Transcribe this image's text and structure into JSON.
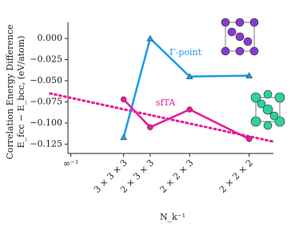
{
  "chart_data": {
    "type": "line",
    "y_label": [
      "Correlation Energy Difference",
      "E_fcc − E_bcc, (eV/atom)"
    ],
    "x_label": "N_k⁻¹",
    "xlim": [
      -0.002,
      0.142
    ],
    "ylim": [
      -0.136,
      0.019
    ],
    "xticks": [
      {
        "value": 0,
        "label": "∞⁻¹"
      },
      {
        "value": 0.037,
        "label": "3 × 3 × 3"
      },
      {
        "value": 0.0556,
        "label": "2 × 3 × 3"
      },
      {
        "value": 0.0833,
        "label": "2 × 2 × 3"
      },
      {
        "value": 0.125,
        "label": "2 × 2 × 2"
      }
    ],
    "yticks": [
      {
        "value": 0,
        "label": "0.000"
      },
      {
        "value": -0.025,
        "label": "−0.025"
      },
      {
        "value": -0.05,
        "label": "−0.050"
      },
      {
        "value": -0.075,
        "label": "−0.075"
      },
      {
        "value": -0.1,
        "label": "−0.100"
      },
      {
        "value": -0.125,
        "label": "−0.125"
      }
    ],
    "series": [
      {
        "name": "Γ-point",
        "color": "#1a9be8",
        "marker": "triangle",
        "x": [
          0.037,
          0.0556,
          0.0833,
          0.125
        ],
        "values": [
          -0.117,
          0.0,
          -0.045,
          -0.044
        ]
      },
      {
        "name": "sfTA",
        "color": "#e81a9b",
        "marker": "circle",
        "x": [
          0.037,
          0.0556,
          0.0833,
          0.125
        ],
        "values": [
          -0.072,
          -0.105,
          -0.084,
          -0.119
        ]
      }
    ],
    "trend": {
      "color": "#e81a9b",
      "x": [
        -0.0145,
        0.142
      ],
      "values": [
        -0.065,
        -0.122
      ]
    }
  }
}
